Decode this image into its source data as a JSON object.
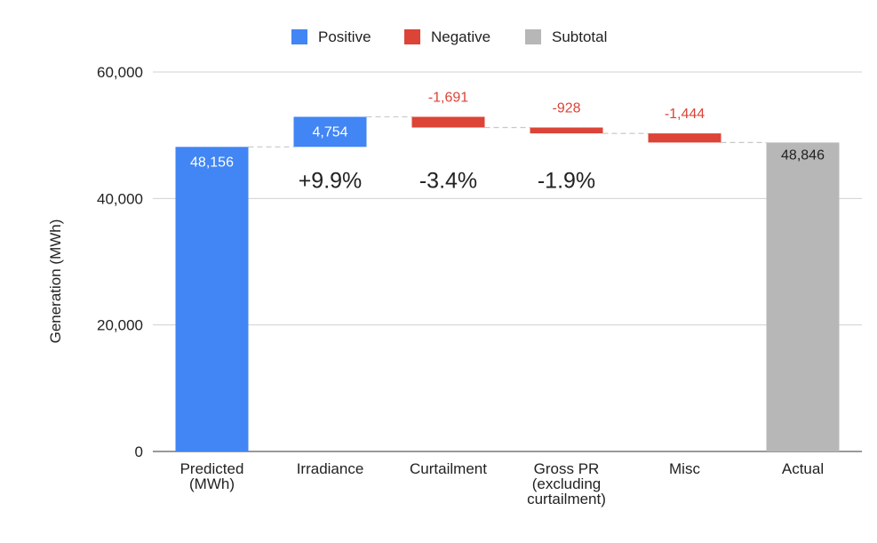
{
  "chart_data": {
    "type": "bar",
    "subtype": "waterfall",
    "categories": [
      [
        "Predicted",
        "(MWh)"
      ],
      [
        "Irradiance"
      ],
      [
        "Curtailment"
      ],
      [
        "Gross PR",
        "(excluding",
        "curtailment)"
      ],
      [
        "Misc"
      ],
      [
        "Actual"
      ]
    ],
    "steps": [
      {
        "kind": "subtotal_start",
        "value": 48156,
        "label": "48,156",
        "color_key": "positive"
      },
      {
        "kind": "positive",
        "value": 4754,
        "label": "4,754"
      },
      {
        "kind": "negative",
        "value": -1691,
        "label": "-1,691"
      },
      {
        "kind": "negative",
        "value": -928,
        "label": "-928"
      },
      {
        "kind": "negative",
        "value": -1444,
        "label": "-1,444"
      },
      {
        "kind": "subtotal",
        "value": 48846,
        "label": "48,846"
      }
    ],
    "annotations": [
      {
        "category_index": 1,
        "text": "+9.9%"
      },
      {
        "category_index": 2,
        "text": "-3.4%"
      },
      {
        "category_index": 3,
        "text": "-1.9%"
      }
    ],
    "legend": [
      {
        "key": "positive",
        "label": "Positive"
      },
      {
        "key": "negative",
        "label": "Negative"
      },
      {
        "key": "subtotal",
        "label": "Subtotal"
      }
    ],
    "legend_position": "top",
    "ylabel": "Generation (MWh)",
    "xlabel": "",
    "ylim": [
      0,
      60000
    ],
    "yticks": [
      0,
      20000,
      40000,
      60000
    ],
    "ytick_labels": [
      "0",
      "20,000",
      "40,000",
      "60,000"
    ],
    "grid": true,
    "colors": {
      "positive": "#4285f4",
      "negative": "#db4437",
      "subtotal": "#b7b7b7"
    }
  }
}
